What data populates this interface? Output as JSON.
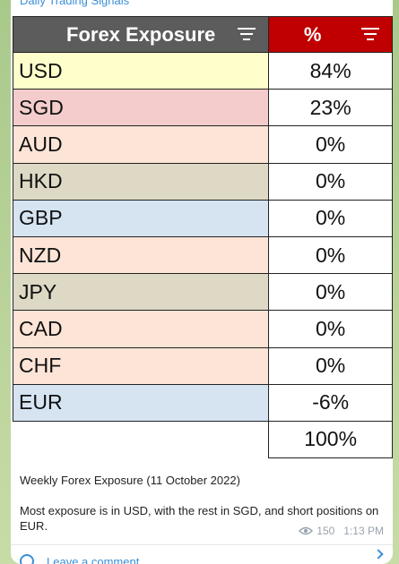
{
  "channel": {
    "name": "Daily Trading Signals"
  },
  "table": {
    "header_currency": "Forex Exposure",
    "header_percent": "%",
    "rows": [
      {
        "currency": "USD",
        "percent": "84%",
        "color": "#ffffcc"
      },
      {
        "currency": "SGD",
        "percent": "23%",
        "color": "#f4cccc"
      },
      {
        "currency": "AUD",
        "percent": "0%",
        "color": "#fce4d6"
      },
      {
        "currency": "HKD",
        "percent": "0%",
        "color": "#ddd9c4"
      },
      {
        "currency": "GBP",
        "percent": "0%",
        "color": "#d6e4f2"
      },
      {
        "currency": "NZD",
        "percent": "0%",
        "color": "#fce4d6"
      },
      {
        "currency": "JPY",
        "percent": "0%",
        "color": "#ddd9c4"
      },
      {
        "currency": "CAD",
        "percent": "0%",
        "color": "#fce4d6"
      },
      {
        "currency": "CHF",
        "percent": "0%",
        "color": "#fce4d6"
      },
      {
        "currency": "EUR",
        "percent": "-6%",
        "color": "#d6e4f2"
      }
    ],
    "total": "100%",
    "header_colors": {
      "currency": "#5c5c5c",
      "percent": "#c00000"
    }
  },
  "caption": {
    "line1": "Weekly Forex Exposure (11 October 2022)",
    "line2": "Most exposure is in USD, with the rest in SGD, and short positions on EUR."
  },
  "meta": {
    "views": "150",
    "time": "1:13 PM",
    "views_icon": "eye-icon"
  },
  "comments": {
    "label": "Leave a comment",
    "icon": "comment-icon"
  }
}
